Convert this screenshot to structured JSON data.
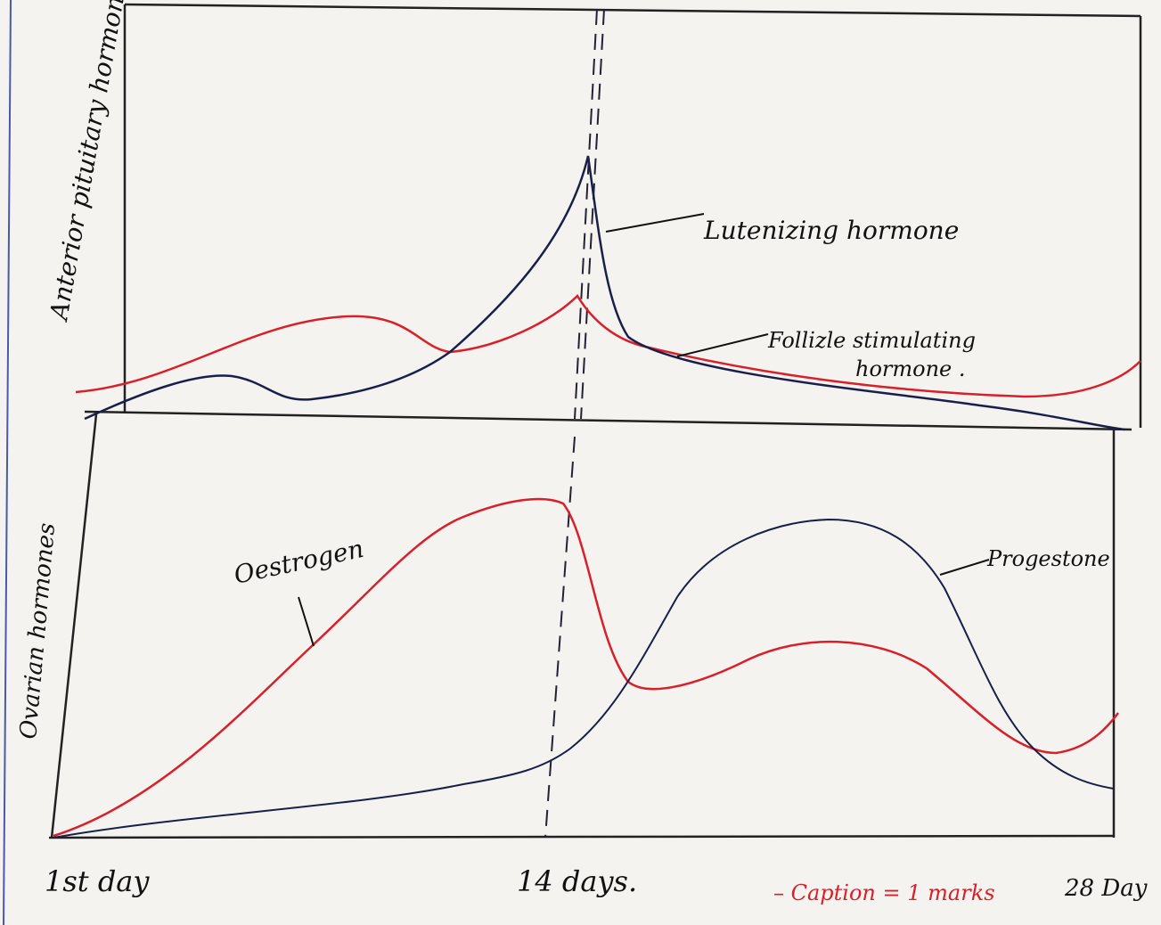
{
  "labels": {
    "top_axis": "Anterior pituitary hormone,",
    "bottom_axis": "Ovarian hormones",
    "lh": "Lutenizing hormone",
    "fsh_line1": "Follizle stimulating",
    "fsh_line2": "hormone .",
    "oestrogen": "Oestrogen",
    "progesterone": "Progestone",
    "day1": "1st day",
    "day14": "14 days.",
    "day28": "28 Day",
    "caption": "– Caption = 1 marks"
  }
}
